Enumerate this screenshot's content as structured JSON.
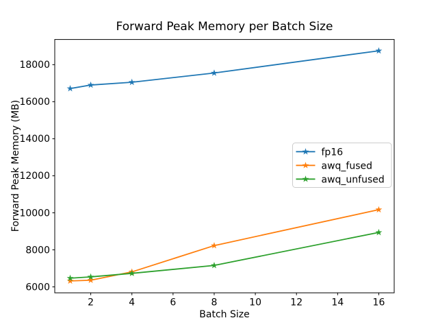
{
  "figure": {
    "title": "Forward Peak Memory per Batch Size",
    "xlabel": "Batch Size",
    "ylabel": "Forward Peak Memory (MB)"
  },
  "chart_data": {
    "type": "line",
    "title": "Forward Peak Memory per Batch Size",
    "xlabel": "Batch Size",
    "ylabel": "Forward Peak Memory (MB)",
    "x": [
      1,
      2,
      4,
      8,
      16
    ],
    "series": [
      {
        "name": "fp16",
        "color": "#1f77b4",
        "values": [
          16710,
          16900,
          17050,
          17550,
          18750
        ]
      },
      {
        "name": "awq_fused",
        "color": "#ff7f0e",
        "values": [
          6320,
          6360,
          6810,
          8230,
          10170
        ]
      },
      {
        "name": "awq_unfused",
        "color": "#2ca02c",
        "values": [
          6470,
          6540,
          6730,
          7160,
          8940
        ]
      }
    ],
    "marker": "star",
    "x_ticks": [
      2,
      4,
      6,
      8,
      10,
      12,
      14,
      16
    ],
    "y_ticks": [
      6000,
      8000,
      10000,
      12000,
      14000,
      16000,
      18000
    ],
    "xlim": [
      0.25,
      16.75
    ],
    "ylim": [
      5680,
      19360
    ],
    "grid": false,
    "legend_position": "center right",
    "axis_color": "#000000",
    "legend_border_color": "#cccccc",
    "background_color": "#ffffff"
  }
}
